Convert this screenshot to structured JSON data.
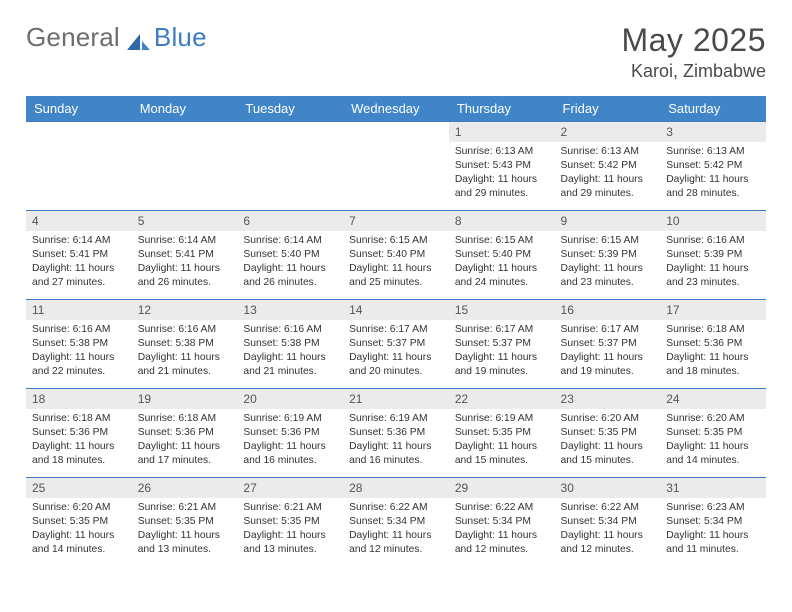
{
  "brand": {
    "part1": "General",
    "part2": "Blue"
  },
  "title": "May 2025",
  "location": "Karoi, Zimbabwe",
  "colors": {
    "header_bg": "#3f85c8",
    "header_text": "#ffffff",
    "daynum_bg": "#ebebeb",
    "daynum_text": "#555555",
    "border": "#3f7dc2",
    "body_text": "#333333",
    "logo_gray": "#6d6d6d",
    "logo_blue": "#3f7dc2",
    "title_color": "#4a4a4a"
  },
  "dayNames": [
    "Sunday",
    "Monday",
    "Tuesday",
    "Wednesday",
    "Thursday",
    "Friday",
    "Saturday"
  ],
  "weeks": [
    [
      null,
      null,
      null,
      null,
      {
        "d": "1",
        "sr": "6:13 AM",
        "ss": "5:43 PM",
        "dl": "11 hours and 29 minutes."
      },
      {
        "d": "2",
        "sr": "6:13 AM",
        "ss": "5:42 PM",
        "dl": "11 hours and 29 minutes."
      },
      {
        "d": "3",
        "sr": "6:13 AM",
        "ss": "5:42 PM",
        "dl": "11 hours and 28 minutes."
      }
    ],
    [
      {
        "d": "4",
        "sr": "6:14 AM",
        "ss": "5:41 PM",
        "dl": "11 hours and 27 minutes."
      },
      {
        "d": "5",
        "sr": "6:14 AM",
        "ss": "5:41 PM",
        "dl": "11 hours and 26 minutes."
      },
      {
        "d": "6",
        "sr": "6:14 AM",
        "ss": "5:40 PM",
        "dl": "11 hours and 26 minutes."
      },
      {
        "d": "7",
        "sr": "6:15 AM",
        "ss": "5:40 PM",
        "dl": "11 hours and 25 minutes."
      },
      {
        "d": "8",
        "sr": "6:15 AM",
        "ss": "5:40 PM",
        "dl": "11 hours and 24 minutes."
      },
      {
        "d": "9",
        "sr": "6:15 AM",
        "ss": "5:39 PM",
        "dl": "11 hours and 23 minutes."
      },
      {
        "d": "10",
        "sr": "6:16 AM",
        "ss": "5:39 PM",
        "dl": "11 hours and 23 minutes."
      }
    ],
    [
      {
        "d": "11",
        "sr": "6:16 AM",
        "ss": "5:38 PM",
        "dl": "11 hours and 22 minutes."
      },
      {
        "d": "12",
        "sr": "6:16 AM",
        "ss": "5:38 PM",
        "dl": "11 hours and 21 minutes."
      },
      {
        "d": "13",
        "sr": "6:16 AM",
        "ss": "5:38 PM",
        "dl": "11 hours and 21 minutes."
      },
      {
        "d": "14",
        "sr": "6:17 AM",
        "ss": "5:37 PM",
        "dl": "11 hours and 20 minutes."
      },
      {
        "d": "15",
        "sr": "6:17 AM",
        "ss": "5:37 PM",
        "dl": "11 hours and 19 minutes."
      },
      {
        "d": "16",
        "sr": "6:17 AM",
        "ss": "5:37 PM",
        "dl": "11 hours and 19 minutes."
      },
      {
        "d": "17",
        "sr": "6:18 AM",
        "ss": "5:36 PM",
        "dl": "11 hours and 18 minutes."
      }
    ],
    [
      {
        "d": "18",
        "sr": "6:18 AM",
        "ss": "5:36 PM",
        "dl": "11 hours and 18 minutes."
      },
      {
        "d": "19",
        "sr": "6:18 AM",
        "ss": "5:36 PM",
        "dl": "11 hours and 17 minutes."
      },
      {
        "d": "20",
        "sr": "6:19 AM",
        "ss": "5:36 PM",
        "dl": "11 hours and 16 minutes."
      },
      {
        "d": "21",
        "sr": "6:19 AM",
        "ss": "5:36 PM",
        "dl": "11 hours and 16 minutes."
      },
      {
        "d": "22",
        "sr": "6:19 AM",
        "ss": "5:35 PM",
        "dl": "11 hours and 15 minutes."
      },
      {
        "d": "23",
        "sr": "6:20 AM",
        "ss": "5:35 PM",
        "dl": "11 hours and 15 minutes."
      },
      {
        "d": "24",
        "sr": "6:20 AM",
        "ss": "5:35 PM",
        "dl": "11 hours and 14 minutes."
      }
    ],
    [
      {
        "d": "25",
        "sr": "6:20 AM",
        "ss": "5:35 PM",
        "dl": "11 hours and 14 minutes."
      },
      {
        "d": "26",
        "sr": "6:21 AM",
        "ss": "5:35 PM",
        "dl": "11 hours and 13 minutes."
      },
      {
        "d": "27",
        "sr": "6:21 AM",
        "ss": "5:35 PM",
        "dl": "11 hours and 13 minutes."
      },
      {
        "d": "28",
        "sr": "6:22 AM",
        "ss": "5:34 PM",
        "dl": "11 hours and 12 minutes."
      },
      {
        "d": "29",
        "sr": "6:22 AM",
        "ss": "5:34 PM",
        "dl": "11 hours and 12 minutes."
      },
      {
        "d": "30",
        "sr": "6:22 AM",
        "ss": "5:34 PM",
        "dl": "11 hours and 12 minutes."
      },
      {
        "d": "31",
        "sr": "6:23 AM",
        "ss": "5:34 PM",
        "dl": "11 hours and 11 minutes."
      }
    ]
  ],
  "labels": {
    "sunrise": "Sunrise:",
    "sunset": "Sunset:",
    "daylight": "Daylight:"
  }
}
